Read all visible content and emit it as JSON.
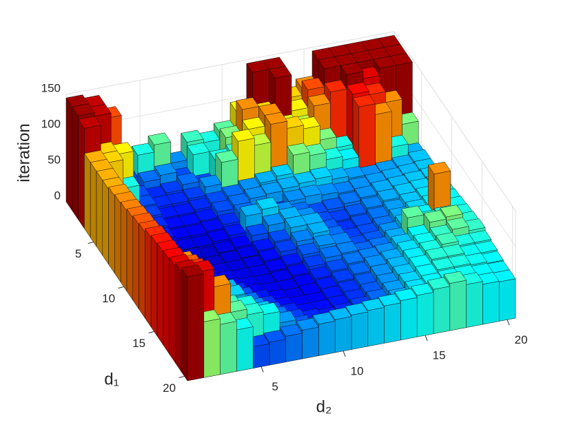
{
  "chart_data": {
    "type": "bar3",
    "xlabel": "d₂",
    "ylabel": "d₁",
    "zlabel": "iteration",
    "colormap": "jet",
    "grid": true,
    "xlim": [
      0.5,
      20.5
    ],
    "xticks": [
      5,
      10,
      15,
      20
    ],
    "ylim": [
      0.5,
      20.5
    ],
    "yticks": [
      5,
      10,
      15,
      20
    ],
    "zlim": [
      0,
      150
    ],
    "zticks": [
      0,
      50,
      100,
      150
    ],
    "z": [
      [
        145,
        140,
        120,
        30,
        60,
        70,
        40,
        65,
        60,
        70,
        95,
        145,
        145,
        100,
        110,
        145,
        145,
        145,
        145,
        145
      ],
      [
        145,
        140,
        70,
        25,
        35,
        40,
        30,
        60,
        45,
        75,
        110,
        100,
        145,
        95,
        120,
        145,
        145,
        145,
        145,
        145
      ],
      [
        140,
        100,
        95,
        30,
        25,
        28,
        35,
        30,
        60,
        65,
        95,
        110,
        90,
        85,
        110,
        125,
        145,
        135,
        145,
        145
      ],
      [
        105,
        100,
        60,
        30,
        25,
        25,
        28,
        40,
        70,
        95,
        85,
        110,
        100,
        95,
        75,
        60,
        130,
        125,
        110,
        75
      ],
      [
        105,
        60,
        35,
        28,
        22,
        22,
        25,
        30,
        35,
        40,
        45,
        50,
        75,
        70,
        60,
        55,
        125,
        110,
        60,
        45
      ],
      [
        105,
        50,
        30,
        25,
        20,
        20,
        22,
        30,
        35,
        40,
        42,
        45,
        48,
        50,
        45,
        42,
        40,
        42,
        45,
        48
      ],
      [
        105,
        40,
        28,
        22,
        18,
        18,
        20,
        25,
        35,
        30,
        28,
        40,
        42,
        40,
        38,
        40,
        42,
        44,
        46,
        48
      ],
      [
        108,
        38,
        25,
        20,
        15,
        15,
        18,
        22,
        45,
        50,
        40,
        35,
        30,
        32,
        36,
        40,
        44,
        46,
        48,
        50
      ],
      [
        110,
        36,
        25,
        18,
        14,
        12,
        15,
        18,
        30,
        40,
        45,
        40,
        30,
        28,
        32,
        38,
        44,
        48,
        50,
        52
      ],
      [
        112,
        38,
        28,
        18,
        14,
        12,
        14,
        16,
        22,
        30,
        45,
        45,
        32,
        26,
        30,
        36,
        42,
        48,
        52,
        54
      ],
      [
        115,
        40,
        30,
        22,
        16,
        14,
        14,
        15,
        20,
        28,
        38,
        45,
        35,
        28,
        30,
        36,
        44,
        50,
        54,
        56
      ],
      [
        118,
        45,
        35,
        28,
        20,
        16,
        15,
        15,
        18,
        22,
        32,
        40,
        38,
        30,
        32,
        40,
        48,
        55,
        110,
        58
      ],
      [
        120,
        50,
        38,
        30,
        24,
        18,
        16,
        15,
        16,
        20,
        28,
        36,
        38,
        34,
        36,
        44,
        70,
        60,
        62,
        60
      ],
      [
        125,
        60,
        45,
        36,
        30,
        24,
        18,
        16,
        16,
        18,
        24,
        30,
        36,
        38,
        40,
        48,
        56,
        72,
        75,
        62
      ],
      [
        128,
        70,
        50,
        42,
        45,
        30,
        22,
        18,
        16,
        18,
        22,
        28,
        34,
        40,
        44,
        52,
        58,
        64,
        70,
        64
      ],
      [
        130,
        110,
        60,
        48,
        50,
        35,
        26,
        20,
        18,
        18,
        22,
        26,
        32,
        40,
        46,
        54,
        60,
        66,
        60,
        60
      ],
      [
        132,
        118,
        70,
        55,
        48,
        40,
        30,
        24,
        20,
        20,
        22,
        26,
        32,
        40,
        48,
        56,
        62,
        62,
        58,
        58
      ],
      [
        135,
        125,
        80,
        65,
        60,
        48,
        36,
        28,
        24,
        22,
        24,
        28,
        34,
        42,
        50,
        56,
        60,
        60,
        58,
        56
      ],
      [
        140,
        135,
        110,
        70,
        62,
        58,
        42,
        32,
        28,
        26,
        26,
        30,
        36,
        44,
        52,
        56,
        58,
        58,
        56,
        55
      ],
      [
        145,
        78,
        70,
        58,
        30,
        32,
        36,
        40,
        44,
        46,
        48,
        50,
        52,
        55,
        58,
        62,
        66,
        60,
        56,
        55
      ]
    ]
  }
}
